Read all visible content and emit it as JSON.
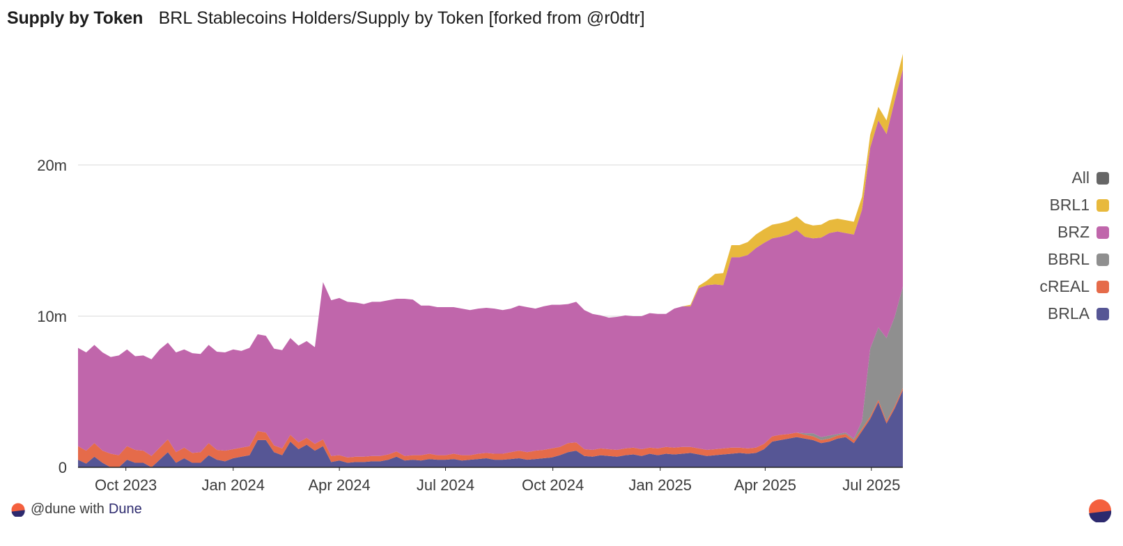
{
  "header": {
    "title": "Supply by Token",
    "subtitle": "BRL Stablecoins Holders/Supply by Token [forked from @r0dtr]"
  },
  "footer": {
    "prefix": "@dune with",
    "brand": "Dune"
  },
  "colors": {
    "All": "#666666",
    "BRL1": "#e8b93c",
    "BRZ": "#c066ab",
    "BBRL": "#8f8f8f",
    "cREAL": "#e56b4a",
    "BRLA": "#565695",
    "grid": "#e6e6e6",
    "axis": "#222222"
  },
  "chart_data": {
    "type": "area",
    "stacked": true,
    "x_start": "2023-08-21",
    "x_interval": "weekly",
    "x_tick_labels": [
      "Oct 2023",
      "Jan 2024",
      "Apr 2024",
      "Jul 2024",
      "Oct 2024",
      "Jan 2025",
      "Apr 2025",
      "Jul 2025"
    ],
    "y_tick_labels": [
      "0",
      "10m",
      "20m"
    ],
    "ylim": [
      0,
      27000000
    ],
    "grid": true,
    "legend_position": "right",
    "legend": [
      "All",
      "BRL1",
      "BRZ",
      "BBRL",
      "cREAL",
      "BRLA"
    ],
    "series": [
      {
        "name": "BRLA",
        "color": "#565695",
        "values": [
          0.5,
          0.25,
          0.7,
          0.3,
          0,
          0,
          0.5,
          0.3,
          0.3,
          0,
          0.5,
          1.0,
          0.3,
          0.6,
          0.3,
          0.3,
          0.8,
          0.5,
          0.4,
          0.6,
          0.7,
          0.8,
          1.8,
          1.8,
          1.0,
          0.8,
          1.7,
          1.2,
          1.5,
          1.1,
          1.4,
          0.35,
          0.45,
          0.3,
          0.35,
          0.35,
          0.4,
          0.4,
          0.5,
          0.7,
          0.45,
          0.5,
          0.45,
          0.55,
          0.5,
          0.5,
          0.55,
          0.45,
          0.5,
          0.55,
          0.6,
          0.5,
          0.5,
          0.55,
          0.6,
          0.5,
          0.55,
          0.6,
          0.65,
          0.8,
          1.0,
          1.1,
          0.75,
          0.7,
          0.8,
          0.75,
          0.7,
          0.8,
          0.85,
          0.75,
          0.9,
          0.8,
          0.9,
          0.85,
          0.9,
          0.95,
          0.85,
          0.75,
          0.8,
          0.85,
          0.9,
          0.95,
          0.9,
          0.95,
          1.2,
          1.7,
          1.8,
          1.9,
          2.0,
          1.9,
          1.8,
          1.6,
          1.7,
          1.9,
          2.0,
          1.6,
          2.4,
          3.2,
          4.3,
          2.9,
          3.9,
          5.1
        ]
      },
      {
        "name": "cREAL",
        "color": "#e56b4a",
        "values": [
          0.9,
          0.85,
          0.9,
          0.8,
          0.9,
          0.8,
          0.9,
          0.85,
          0.8,
          0.75,
          0.8,
          0.85,
          0.7,
          0.7,
          0.65,
          0.7,
          0.8,
          0.65,
          0.7,
          0.6,
          0.6,
          0.6,
          0.6,
          0.5,
          0.45,
          0.45,
          0.45,
          0.45,
          0.45,
          0.45,
          0.45,
          0.4,
          0.35,
          0.35,
          0.35,
          0.35,
          0.35,
          0.35,
          0.35,
          0.35,
          0.3,
          0.3,
          0.35,
          0.35,
          0.3,
          0.3,
          0.35,
          0.35,
          0.3,
          0.35,
          0.35,
          0.4,
          0.4,
          0.45,
          0.5,
          0.5,
          0.55,
          0.55,
          0.6,
          0.55,
          0.6,
          0.55,
          0.45,
          0.45,
          0.45,
          0.45,
          0.45,
          0.45,
          0.45,
          0.45,
          0.4,
          0.45,
          0.45,
          0.45,
          0.45,
          0.4,
          0.4,
          0.4,
          0.4,
          0.4,
          0.4,
          0.35,
          0.35,
          0.35,
          0.35,
          0.35,
          0.35,
          0.3,
          0.3,
          0.25,
          0.25,
          0.2,
          0.2,
          0.2,
          0.2,
          0.2,
          0.15,
          0.15,
          0.15,
          0.15,
          0.15,
          0.15
        ]
      },
      {
        "name": "BBRL",
        "color": "#8f8f8f",
        "values": [
          0,
          0,
          0,
          0,
          0,
          0,
          0,
          0,
          0,
          0,
          0,
          0,
          0,
          0,
          0,
          0,
          0,
          0,
          0,
          0,
          0,
          0,
          0,
          0,
          0,
          0,
          0,
          0,
          0,
          0,
          0,
          0,
          0,
          0,
          0,
          0,
          0,
          0,
          0,
          0,
          0,
          0,
          0,
          0,
          0,
          0,
          0,
          0,
          0,
          0,
          0,
          0,
          0,
          0,
          0,
          0,
          0,
          0,
          0,
          0,
          0,
          0,
          0,
          0,
          0,
          0,
          0,
          0,
          0,
          0,
          0,
          0,
          0,
          0,
          0,
          0,
          0,
          0,
          0,
          0,
          0,
          0,
          0,
          0,
          0,
          0,
          0,
          0,
          0,
          0.1,
          0.2,
          0.2,
          0.2,
          0.1,
          0.1,
          0.1,
          0.5,
          4.5,
          4.8,
          5.5,
          5.9,
          6.7
        ]
      },
      {
        "name": "BRZ",
        "color": "#c066ab",
        "values": [
          6.5,
          6.5,
          6.5,
          6.5,
          6.4,
          6.6,
          6.4,
          6.2,
          6.3,
          6.4,
          6.5,
          6.4,
          6.6,
          6.5,
          6.6,
          6.5,
          6.5,
          6.5,
          6.5,
          6.6,
          6.4,
          6.5,
          6.4,
          6.4,
          6.4,
          6.5,
          6.4,
          6.4,
          6.4,
          6.4,
          10.4,
          10.3,
          10.4,
          10.3,
          10.2,
          10.1,
          10.2,
          10.2,
          10.2,
          10.1,
          10.4,
          10.3,
          9.9,
          9.8,
          9.8,
          9.8,
          9.7,
          9.7,
          9.6,
          9.6,
          9.6,
          9.6,
          9.5,
          9.5,
          9.6,
          9.6,
          9.4,
          9.5,
          9.5,
          9.4,
          9.2,
          9.3,
          9.2,
          9.0,
          8.8,
          8.7,
          8.8,
          8.8,
          8.7,
          8.8,
          8.9,
          8.9,
          8.8,
          9.2,
          9.3,
          9.3,
          10.6,
          10.9,
          10.9,
          10.8,
          12.6,
          12.6,
          12.8,
          13.2,
          13.3,
          13.1,
          13.1,
          13.2,
          13.4,
          13.0,
          12.9,
          13.2,
          13.4,
          13.4,
          13.2,
          13.5,
          14.0,
          13.3,
          13.7,
          13.5,
          14.3,
          14.4
        ]
      },
      {
        "name": "BRL1",
        "color": "#e8b93c",
        "values": [
          0,
          0,
          0,
          0,
          0,
          0,
          0,
          0,
          0,
          0,
          0,
          0,
          0,
          0,
          0,
          0,
          0,
          0,
          0,
          0,
          0,
          0,
          0,
          0,
          0,
          0,
          0,
          0,
          0,
          0,
          0,
          0,
          0,
          0,
          0,
          0,
          0,
          0,
          0,
          0,
          0,
          0,
          0,
          0,
          0,
          0,
          0,
          0,
          0,
          0,
          0,
          0,
          0,
          0,
          0,
          0,
          0,
          0,
          0,
          0,
          0,
          0,
          0,
          0,
          0,
          0,
          0,
          0,
          0,
          0,
          0,
          0,
          0,
          0,
          0,
          0.1,
          0.15,
          0.3,
          0.7,
          0.8,
          0.8,
          0.8,
          0.85,
          0.9,
          0.9,
          0.9,
          0.9,
          0.9,
          0.9,
          0.9,
          0.85,
          0.85,
          0.85,
          0.85,
          0.85,
          0.85,
          0.85,
          0.85,
          0.9,
          0.9,
          0.95,
          1.0
        ]
      }
    ]
  }
}
